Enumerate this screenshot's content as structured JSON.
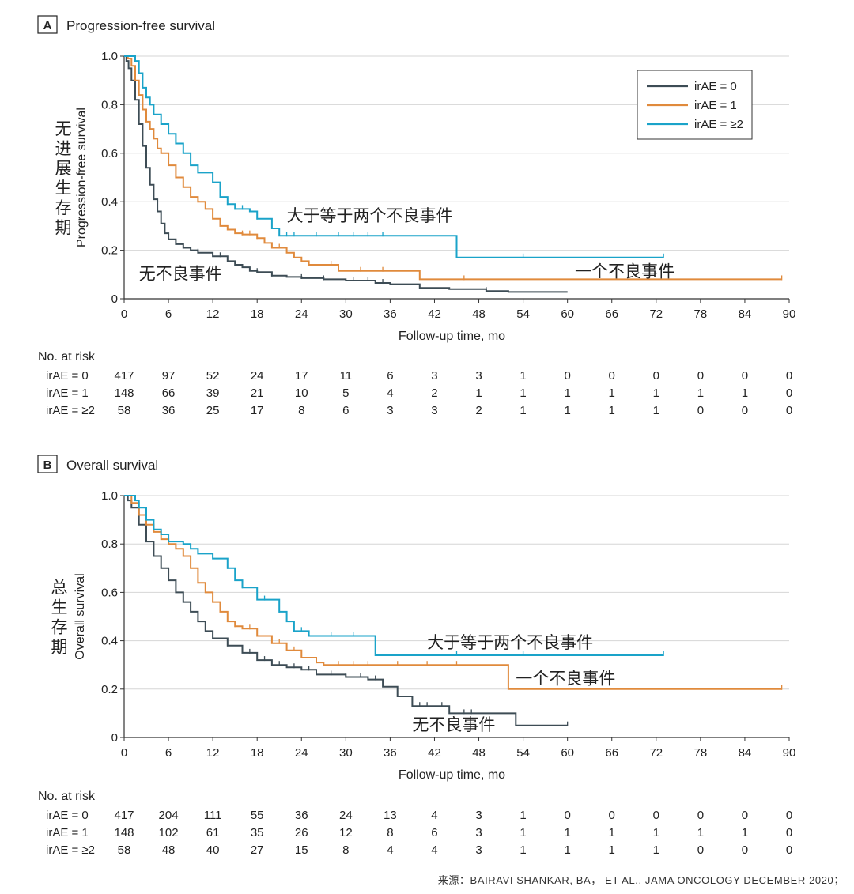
{
  "colors": {
    "irAE0": "#3d4c55",
    "irAE1": "#e08a3c",
    "irAE2": "#1aa3c9",
    "grid": "#d6d6d6",
    "axis": "#333333"
  },
  "panel_a": {
    "letter": "A",
    "title": "Progression-free survival"
  },
  "panel_b": {
    "letter": "B",
    "title": "Overall survival"
  },
  "chart_data": [
    {
      "type": "line",
      "title": "Progression-free survival",
      "xlabel": "Follow-up time, mo",
      "ylabel": "Progression-free survival",
      "ylabel_cn": "无进展生存期",
      "xlim": [
        0,
        90
      ],
      "ylim": [
        0,
        1.0
      ],
      "xticks": [
        0,
        6,
        12,
        18,
        24,
        30,
        36,
        42,
        48,
        54,
        60,
        66,
        72,
        78,
        84,
        90
      ],
      "yticks": [
        0,
        0.2,
        0.4,
        0.6,
        0.8,
        1.0
      ],
      "ytick_labels": [
        "0",
        "0.2",
        "0.4",
        "0.6",
        "0.8",
        "1.0"
      ],
      "grid": true,
      "legend": {
        "position": "top-right",
        "entries": [
          "irAE = 0",
          "irAE = 1",
          "irAE = ≥2"
        ]
      },
      "annotations": [
        {
          "text": "大于等于两个不良事件",
          "x": 22,
          "y": 0.32
        },
        {
          "text": "一个不良事件",
          "x": 61,
          "y": 0.09
        },
        {
          "text": "无不良事件",
          "x": 2,
          "y": 0.08
        }
      ],
      "series": [
        {
          "name": "irAE = 0",
          "color_key": "irAE0",
          "points": [
            [
              0,
              1.0
            ],
            [
              0.3,
              0.98
            ],
            [
              0.6,
              0.95
            ],
            [
              1,
              0.9
            ],
            [
              1.5,
              0.82
            ],
            [
              2,
              0.72
            ],
            [
              2.5,
              0.63
            ],
            [
              3,
              0.54
            ],
            [
              3.5,
              0.47
            ],
            [
              4,
              0.41
            ],
            [
              4.5,
              0.36
            ],
            [
              5,
              0.31
            ],
            [
              5.5,
              0.27
            ],
            [
              6,
              0.245
            ],
            [
              7,
              0.225
            ],
            [
              8,
              0.21
            ],
            [
              9,
              0.2
            ],
            [
              10,
              0.19
            ],
            [
              12,
              0.175
            ],
            [
              14,
              0.155
            ],
            [
              15,
              0.14
            ],
            [
              16,
              0.13
            ],
            [
              17,
              0.115
            ],
            [
              18,
              0.11
            ],
            [
              20,
              0.095
            ],
            [
              22,
              0.09
            ],
            [
              24,
              0.085
            ],
            [
              27,
              0.08
            ],
            [
              30,
              0.075
            ],
            [
              34,
              0.065
            ],
            [
              36,
              0.06
            ],
            [
              40,
              0.045
            ],
            [
              44,
              0.04
            ],
            [
              49,
              0.032
            ],
            [
              52,
              0.028
            ],
            [
              60,
              0.028
            ]
          ],
          "censor": [
            8,
            10,
            13,
            15,
            18,
            20,
            24,
            27,
            31,
            33,
            35,
            49
          ]
        },
        {
          "name": "irAE = 1",
          "color_key": "irAE1",
          "points": [
            [
              0,
              1.0
            ],
            [
              0.5,
              0.99
            ],
            [
              1,
              0.96
            ],
            [
              1.5,
              0.9
            ],
            [
              2,
              0.84
            ],
            [
              2.5,
              0.78
            ],
            [
              3,
              0.73
            ],
            [
              3.5,
              0.7
            ],
            [
              4,
              0.66
            ],
            [
              4.5,
              0.62
            ],
            [
              5,
              0.6
            ],
            [
              6,
              0.55
            ],
            [
              7,
              0.5
            ],
            [
              8,
              0.46
            ],
            [
              9,
              0.42
            ],
            [
              10,
              0.4
            ],
            [
              11,
              0.37
            ],
            [
              12,
              0.33
            ],
            [
              13,
              0.3
            ],
            [
              14,
              0.285
            ],
            [
              15,
              0.27
            ],
            [
              16,
              0.265
            ],
            [
              18,
              0.25
            ],
            [
              19,
              0.23
            ],
            [
              20,
              0.21
            ],
            [
              22,
              0.19
            ],
            [
              23,
              0.17
            ],
            [
              24,
              0.155
            ],
            [
              25,
              0.14
            ],
            [
              29,
              0.115
            ],
            [
              33,
              0.115
            ],
            [
              40,
              0.08
            ],
            [
              89,
              0.08
            ]
          ],
          "censor": [
            10,
            14,
            16,
            17,
            18,
            21,
            23,
            25,
            28,
            32,
            35,
            46,
            89
          ]
        },
        {
          "name": "irAE = ≥2",
          "color_key": "irAE2",
          "points": [
            [
              0,
              1.0
            ],
            [
              1,
              1.0
            ],
            [
              1.5,
              0.98
            ],
            [
              2,
              0.93
            ],
            [
              2.5,
              0.87
            ],
            [
              3,
              0.83
            ],
            [
              3.5,
              0.8
            ],
            [
              4,
              0.76
            ],
            [
              5,
              0.72
            ],
            [
              6,
              0.68
            ],
            [
              7,
              0.64
            ],
            [
              8,
              0.6
            ],
            [
              9,
              0.55
            ],
            [
              10,
              0.52
            ],
            [
              12,
              0.48
            ],
            [
              13,
              0.42
            ],
            [
              14,
              0.39
            ],
            [
              15,
              0.37
            ],
            [
              17,
              0.36
            ],
            [
              18,
              0.33
            ],
            [
              20,
              0.29
            ],
            [
              21,
              0.26
            ],
            [
              25,
              0.26
            ],
            [
              45,
              0.17
            ],
            [
              73,
              0.17
            ]
          ],
          "censor": [
            14,
            15,
            16,
            18,
            22,
            23,
            26,
            29,
            31,
            33,
            35,
            54,
            73
          ]
        }
      ],
      "risk_table": {
        "title": "No. at risk",
        "rows": [
          {
            "label": "irAE = 0",
            "values": [
              "417",
              "97",
              "52",
              "24",
              "17",
              "11",
              "6",
              "3",
              "3",
              "1",
              "0",
              "0",
              "0",
              "0",
              "0",
              "0"
            ]
          },
          {
            "label": "irAE = 1",
            "values": [
              "148",
              "66",
              "39",
              "21",
              "10",
              "5",
              "4",
              "2",
              "1",
              "1",
              "1",
              "1",
              "1",
              "1",
              "1",
              "0"
            ]
          },
          {
            "label": "irAE = ≥2",
            "values": [
              "58",
              "36",
              "25",
              "17",
              "8",
              "6",
              "3",
              "3",
              "2",
              "1",
              "1",
              "1",
              "1",
              "0",
              "0",
              "0"
            ]
          }
        ]
      }
    },
    {
      "type": "line",
      "title": "Overall survival",
      "xlabel": "Follow-up time, mo",
      "ylabel": "Overall survival",
      "ylabel_cn": "总生存期",
      "xlim": [
        0,
        90
      ],
      "ylim": [
        0,
        1.0
      ],
      "xticks": [
        0,
        6,
        12,
        18,
        24,
        30,
        36,
        42,
        48,
        54,
        60,
        66,
        72,
        78,
        84,
        90
      ],
      "yticks": [
        0,
        0.2,
        0.4,
        0.6,
        0.8,
        1.0
      ],
      "ytick_labels": [
        "0",
        "0.2",
        "0.4",
        "0.6",
        "0.8",
        "1.0"
      ],
      "grid": true,
      "annotations": [
        {
          "text": "大于等于两个不良事件",
          "x": 41,
          "y": 0.37
        },
        {
          "text": "一个不良事件",
          "x": 53,
          "y": 0.22
        },
        {
          "text": "无不良事件",
          "x": 39,
          "y": 0.03
        }
      ],
      "series": [
        {
          "name": "irAE = 0",
          "color_key": "irAE0",
          "points": [
            [
              0,
              1.0
            ],
            [
              0.5,
              0.98
            ],
            [
              1,
              0.95
            ],
            [
              2,
              0.88
            ],
            [
              3,
              0.81
            ],
            [
              4,
              0.75
            ],
            [
              5,
              0.7
            ],
            [
              6,
              0.65
            ],
            [
              7,
              0.6
            ],
            [
              8,
              0.56
            ],
            [
              9,
              0.52
            ],
            [
              10,
              0.48
            ],
            [
              11,
              0.44
            ],
            [
              12,
              0.41
            ],
            [
              14,
              0.38
            ],
            [
              16,
              0.35
            ],
            [
              18,
              0.32
            ],
            [
              20,
              0.3
            ],
            [
              22,
              0.29
            ],
            [
              24,
              0.28
            ],
            [
              26,
              0.26
            ],
            [
              30,
              0.25
            ],
            [
              33,
              0.24
            ],
            [
              35,
              0.21
            ],
            [
              37,
              0.17
            ],
            [
              39,
              0.13
            ],
            [
              44,
              0.1
            ],
            [
              53,
              0.05
            ],
            [
              60,
              0.05
            ]
          ],
          "censor": [
            14,
            17,
            19,
            21,
            23,
            25,
            28,
            30,
            32,
            34,
            40,
            41,
            43,
            46,
            47,
            60
          ]
        },
        {
          "name": "irAE = 1",
          "color_key": "irAE1",
          "points": [
            [
              0,
              1.0
            ],
            [
              1,
              0.97
            ],
            [
              2,
              0.92
            ],
            [
              3,
              0.88
            ],
            [
              4,
              0.85
            ],
            [
              5,
              0.82
            ],
            [
              6,
              0.8
            ],
            [
              7,
              0.78
            ],
            [
              8,
              0.75
            ],
            [
              9,
              0.7
            ],
            [
              10,
              0.64
            ],
            [
              11,
              0.6
            ],
            [
              12,
              0.56
            ],
            [
              13,
              0.52
            ],
            [
              14,
              0.48
            ],
            [
              15,
              0.46
            ],
            [
              16,
              0.45
            ],
            [
              18,
              0.42
            ],
            [
              20,
              0.39
            ],
            [
              22,
              0.36
            ],
            [
              24,
              0.33
            ],
            [
              26,
              0.31
            ],
            [
              27,
              0.3
            ],
            [
              37,
              0.3
            ],
            [
              52,
              0.2
            ],
            [
              89,
              0.2
            ]
          ],
          "censor": [
            8,
            10,
            15,
            17,
            21,
            23,
            26,
            29,
            31,
            33,
            37,
            41,
            45,
            89
          ]
        },
        {
          "name": "irAE = ≥2",
          "color_key": "irAE2",
          "points": [
            [
              0,
              1.0
            ],
            [
              1.5,
              0.98
            ],
            [
              2,
              0.95
            ],
            [
              3,
              0.9
            ],
            [
              4,
              0.86
            ],
            [
              5,
              0.84
            ],
            [
              6,
              0.81
            ],
            [
              8,
              0.8
            ],
            [
              9,
              0.78
            ],
            [
              10,
              0.76
            ],
            [
              12,
              0.74
            ],
            [
              14,
              0.7
            ],
            [
              15,
              0.65
            ],
            [
              16,
              0.62
            ],
            [
              18,
              0.57
            ],
            [
              21,
              0.52
            ],
            [
              22,
              0.48
            ],
            [
              23,
              0.44
            ],
            [
              25,
              0.42
            ],
            [
              34,
              0.34
            ],
            [
              73,
              0.34
            ]
          ],
          "censor": [
            10,
            14,
            16,
            19,
            21,
            24,
            28,
            31,
            45,
            54,
            73
          ]
        }
      ],
      "risk_table": {
        "title": "No. at risk",
        "rows": [
          {
            "label": "irAE = 0",
            "values": [
              "417",
              "204",
              "111",
              "55",
              "36",
              "24",
              "13",
              "4",
              "3",
              "1",
              "0",
              "0",
              "0",
              "0",
              "0",
              "0"
            ]
          },
          {
            "label": "irAE = 1",
            "values": [
              "148",
              "102",
              "61",
              "35",
              "26",
              "12",
              "8",
              "6",
              "3",
              "1",
              "1",
              "1",
              "1",
              "1",
              "1",
              "0"
            ]
          },
          {
            "label": "irAE = ≥2",
            "values": [
              "58",
              "48",
              "40",
              "27",
              "15",
              "8",
              "4",
              "4",
              "3",
              "1",
              "1",
              "1",
              "1",
              "0",
              "0",
              "0"
            ]
          }
        ]
      }
    }
  ],
  "source": "来源：BAIRAVI SHANKAR, BA， ET AL., JAMA ONCOLOGY DECEMBER 2020；"
}
